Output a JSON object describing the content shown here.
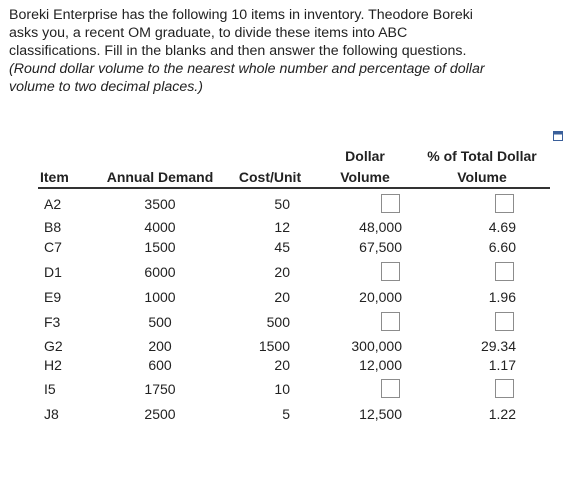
{
  "intro": {
    "lines": [
      "Boreki Enterprise has the following 10 items in inventory.  Theodore Boreki",
      "asks you, a recent OM graduate, to divide these items into ABC",
      "classifications. Fill in the blanks and then answer the following questions."
    ],
    "note_lines": [
      "(Round dollar volume to the nearest whole number and percentage of dollar",
      "volume to two decimal places.)"
    ]
  },
  "icons": {
    "copy": "copy-icon"
  },
  "table": {
    "headers": {
      "item": "Item",
      "demand": "Annual Demand",
      "cost": "Cost/Unit",
      "dollar_top": "Dollar",
      "dollar_bottom": "Volume",
      "pct_top": "% of Total Dollar",
      "pct_bottom": "Volume"
    },
    "rows": [
      {
        "item": "A2",
        "demand": "3500",
        "cost": "50",
        "dollar": "",
        "pct": ""
      },
      {
        "item": "B8",
        "demand": "4000",
        "cost": "12",
        "dollar": "48,000",
        "pct": "4.69"
      },
      {
        "item": "C7",
        "demand": "1500",
        "cost": "45",
        "dollar": "67,500",
        "pct": "6.60"
      },
      {
        "item": "D1",
        "demand": "6000",
        "cost": "20",
        "dollar": "",
        "pct": ""
      },
      {
        "item": "E9",
        "demand": "1000",
        "cost": "20",
        "dollar": "20,000",
        "pct": "1.96"
      },
      {
        "item": "F3",
        "demand": "500",
        "cost": "500",
        "dollar": "",
        "pct": ""
      },
      {
        "item": "G2",
        "demand": "200",
        "cost": "1500",
        "dollar": "300,000",
        "pct": "29.34"
      },
      {
        "item": "H2",
        "demand": "600",
        "cost": "20",
        "dollar": "12,000",
        "pct": "1.17"
      },
      {
        "item": "I5",
        "demand": "1750",
        "cost": "10",
        "dollar": "",
        "pct": ""
      },
      {
        "item": "J8",
        "demand": "2500",
        "cost": "5",
        "dollar": "12,500",
        "pct": "1.22"
      }
    ]
  }
}
